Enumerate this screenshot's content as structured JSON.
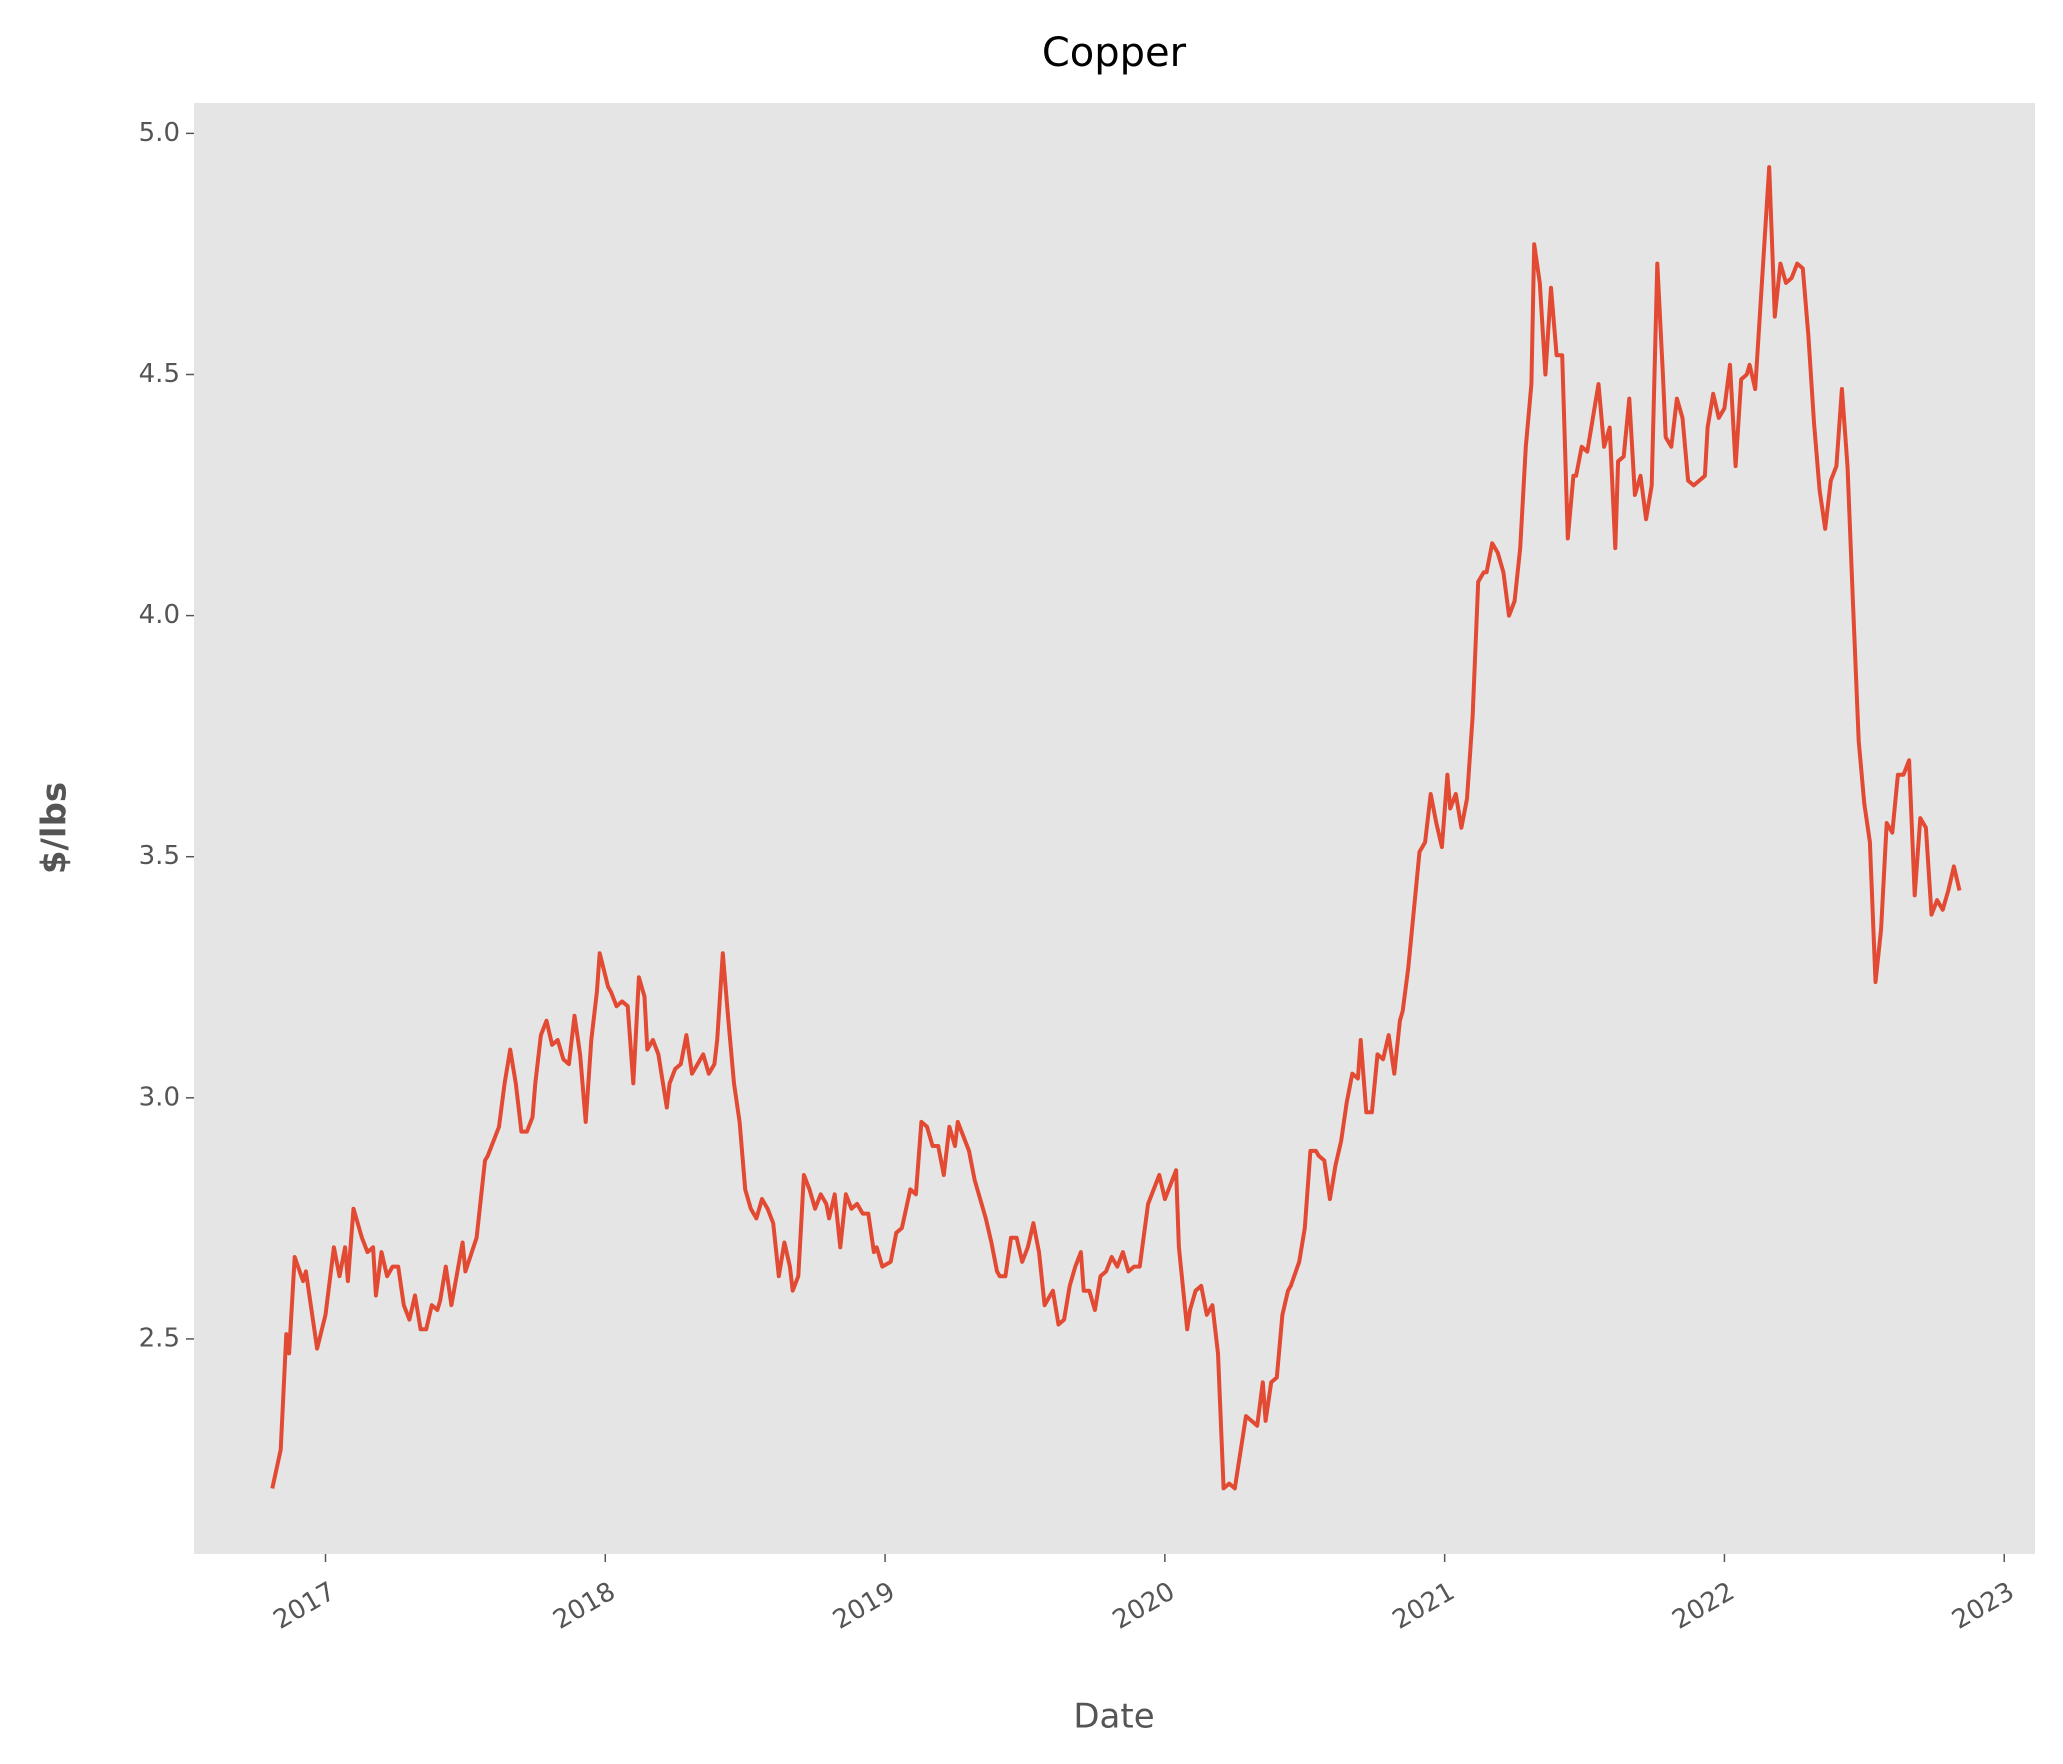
{
  "chart_data": {
    "type": "line",
    "title": "Copper",
    "xlabel": "Date",
    "ylabel": "$/lbs",
    "color": "#E24A33",
    "grid": false,
    "xlim": [
      2016.53,
      2023.11
    ],
    "xticks": [
      2017,
      2018,
      2019,
      2020,
      2021,
      2022,
      2023
    ],
    "ylim": [
      2.054,
      5.063
    ],
    "yticks": [
      2.5,
      {
        "value": 3,
        "label": "3.0"
      },
      3.5,
      {
        "value": 4,
        "label": "4.0"
      },
      4.5,
      {
        "value": 5,
        "label": "5.0"
      }
    ],
    "x": [
      2016.81,
      2016.84,
      2016.86,
      2016.87,
      2016.89,
      2016.92,
      2016.93,
      2016.97,
      2017.0,
      2017.03,
      2017.05,
      2017.07,
      2017.08,
      2017.1,
      2017.13,
      2017.15,
      2017.17,
      2017.18,
      2017.2,
      2017.22,
      2017.24,
      2017.26,
      2017.28,
      2017.3,
      2017.32,
      2017.34,
      2017.36,
      2017.38,
      2017.4,
      2017.41,
      2017.43,
      2017.45,
      2017.49,
      2017.5,
      2017.54,
      2017.57,
      2017.58,
      2017.62,
      2017.64,
      2017.66,
      2017.68,
      2017.7,
      2017.72,
      2017.74,
      2017.75,
      2017.77,
      2017.79,
      2017.81,
      2017.83,
      2017.85,
      2017.87,
      2017.89,
      2017.91,
      2017.93,
      2017.95,
      2017.97,
      2017.98,
      2018.01,
      2018.02,
      2018.04,
      2018.06,
      2018.08,
      2018.1,
      2018.12,
      2018.14,
      2018.15,
      2018.17,
      2018.19,
      2018.22,
      2018.23,
      2018.25,
      2018.27,
      2018.29,
      2018.31,
      2018.33,
      2018.35,
      2018.37,
      2018.39,
      2018.4,
      2018.42,
      2018.44,
      2018.46,
      2018.48,
      2018.5,
      2018.52,
      2018.54,
      2018.56,
      2018.58,
      2018.6,
      2018.62,
      2018.64,
      2018.66,
      2018.67,
      2018.69,
      2018.71,
      2018.73,
      2018.75,
      2018.77,
      2018.79,
      2018.8,
      2018.82,
      2018.84,
      2018.86,
      2018.88,
      2018.9,
      2018.92,
      2018.94,
      2018.96,
      2018.97,
      2018.99,
      2019.02,
      2019.04,
      2019.06,
      2019.09,
      2019.11,
      2019.13,
      2019.15,
      2019.17,
      2019.19,
      2019.21,
      2019.23,
      2019.25,
      2019.26,
      2019.28,
      2019.3,
      2019.32,
      2019.36,
      2019.38,
      2019.4,
      2019.41,
      2019.43,
      2019.45,
      2019.47,
      2019.49,
      2019.51,
      2019.53,
      2019.55,
      2019.57,
      2019.59,
      2019.6,
      2019.62,
      2019.64,
      2019.66,
      2019.68,
      2019.7,
      2019.71,
      2019.73,
      2019.75,
      2019.77,
      2019.79,
      2019.81,
      2019.83,
      2019.85,
      2019.87,
      2019.89,
      2019.91,
      2019.94,
      2019.96,
      2019.98,
      2020.0,
      2020.02,
      2020.04,
      2020.05,
      2020.08,
      2020.09,
      2020.11,
      2020.13,
      2020.15,
      2020.17,
      2020.19,
      2020.21,
      2020.23,
      2020.25,
      2020.29,
      2020.31,
      2020.33,
      2020.35,
      2020.36,
      2020.38,
      2020.4,
      2020.42,
      2020.44,
      2020.45,
      2020.48,
      2020.5,
      2020.52,
      2020.54,
      2020.55,
      2020.57,
      2020.59,
      2020.61,
      2020.63,
      2020.65,
      2020.67,
      2020.69,
      2020.7,
      2020.72,
      2020.74,
      2020.76,
      2020.78,
      2020.8,
      2020.82,
      2020.84,
      2020.85,
      2020.87,
      2020.89,
      2020.91,
      2020.93,
      2020.95,
      2020.97,
      2020.99,
      2021.01,
      2021.02,
      2021.04,
      2021.06,
      2021.08,
      2021.1,
      2021.12,
      2021.14,
      2021.15,
      2021.17,
      2021.19,
      2021.21,
      2021.23,
      2021.25,
      2021.27,
      2021.29,
      2021.31,
      2021.32,
      2021.34,
      2021.36,
      2021.38,
      2021.4,
      2021.42,
      2021.44,
      2021.46,
      2021.47,
      2021.49,
      2021.51,
      2021.55,
      2021.57,
      2021.59,
      2021.61,
      2021.62,
      2021.64,
      2021.66,
      2021.68,
      2021.7,
      2021.72,
      2021.74,
      2021.76,
      2021.78,
      2021.79,
      2021.81,
      2021.83,
      2021.85,
      2021.87,
      2021.89,
      2021.91,
      2021.93,
      2021.94,
      2021.96,
      2021.98,
      2022.0,
      2022.02,
      2022.04,
      2022.06,
      2022.08,
      2022.09,
      2022.11,
      2022.16,
      2022.18,
      2022.2,
      2022.22,
      2022.24,
      2022.26,
      2022.28,
      2022.3,
      2022.32,
      2022.34,
      2022.36,
      2022.38,
      2022.4,
      2022.42,
      2022.44,
      2022.46,
      2022.48,
      2022.5,
      2022.52,
      2022.54,
      2022.56,
      2022.58,
      2022.6,
      2022.62,
      2022.64,
      2022.66,
      2022.68,
      2022.7,
      2022.72,
      2022.74,
      2022.76,
      2022.78,
      2022.8,
      2022.82,
      2022.84
    ],
    "values": [
      2.19,
      2.27,
      2.51,
      2.47,
      2.67,
      2.62,
      2.64,
      2.48,
      2.55,
      2.69,
      2.63,
      2.69,
      2.62,
      2.77,
      2.71,
      2.68,
      2.69,
      2.59,
      2.68,
      2.63,
      2.65,
      2.65,
      2.57,
      2.54,
      2.59,
      2.52,
      2.52,
      2.57,
      2.56,
      2.58,
      2.65,
      2.57,
      2.7,
      2.64,
      2.71,
      2.87,
      2.88,
      2.94,
      3.03,
      3.1,
      3.03,
      2.93,
      2.93,
      2.96,
      3.03,
      3.13,
      3.16,
      3.11,
      3.12,
      3.08,
      3.07,
      3.17,
      3.09,
      2.95,
      3.12,
      3.22,
      3.3,
      3.23,
      3.22,
      3.19,
      3.2,
      3.19,
      3.03,
      3.25,
      3.21,
      3.1,
      3.12,
      3.09,
      2.98,
      3.03,
      3.06,
      3.07,
      3.13,
      3.05,
      3.07,
      3.09,
      3.05,
      3.07,
      3.12,
      3.3,
      3.16,
      3.03,
      2.95,
      2.81,
      2.77,
      2.75,
      2.79,
      2.77,
      2.74,
      2.63,
      2.7,
      2.65,
      2.6,
      2.63,
      2.84,
      2.81,
      2.77,
      2.8,
      2.78,
      2.75,
      2.8,
      2.69,
      2.8,
      2.77,
      2.78,
      2.76,
      2.76,
      2.68,
      2.69,
      2.65,
      2.66,
      2.72,
      2.73,
      2.81,
      2.8,
      2.95,
      2.94,
      2.9,
      2.9,
      2.84,
      2.94,
      2.9,
      2.95,
      2.92,
      2.89,
      2.83,
      2.75,
      2.7,
      2.64,
      2.63,
      2.63,
      2.71,
      2.71,
      2.66,
      2.69,
      2.74,
      2.68,
      2.57,
      2.59,
      2.6,
      2.53,
      2.54,
      2.61,
      2.65,
      2.68,
      2.6,
      2.6,
      2.56,
      2.63,
      2.64,
      2.67,
      2.65,
      2.68,
      2.64,
      2.65,
      2.65,
      2.78,
      2.81,
      2.84,
      2.79,
      2.82,
      2.85,
      2.69,
      2.52,
      2.56,
      2.6,
      2.61,
      2.55,
      2.57,
      2.47,
      2.19,
      2.2,
      2.19,
      2.34,
      2.33,
      2.32,
      2.41,
      2.33,
      2.41,
      2.42,
      2.55,
      2.6,
      2.61,
      2.66,
      2.73,
      2.89,
      2.89,
      2.88,
      2.87,
      2.79,
      2.86,
      2.91,
      2.99,
      3.05,
      3.04,
      3.12,
      2.97,
      2.97,
      3.09,
      3.08,
      3.13,
      3.05,
      3.16,
      3.18,
      3.27,
      3.39,
      3.51,
      3.53,
      3.63,
      3.57,
      3.52,
      3.67,
      3.6,
      3.63,
      3.56,
      3.62,
      3.79,
      4.07,
      4.09,
      4.09,
      4.15,
      4.13,
      4.09,
      4.0,
      4.03,
      4.14,
      4.35,
      4.48,
      4.77,
      4.69,
      4.5,
      4.68,
      4.54,
      4.54,
      4.16,
      4.29,
      4.29,
      4.35,
      4.34,
      4.48,
      4.35,
      4.39,
      4.14,
      4.32,
      4.33,
      4.45,
      4.25,
      4.29,
      4.2,
      4.27,
      4.73,
      4.5,
      4.37,
      4.35,
      4.45,
      4.41,
      4.28,
      4.27,
      4.28,
      4.29,
      4.39,
      4.46,
      4.41,
      4.43,
      4.52,
      4.31,
      4.49,
      4.5,
      4.52,
      4.47,
      4.93,
      4.62,
      4.73,
      4.69,
      4.7,
      4.73,
      4.72,
      4.58,
      4.4,
      4.26,
      4.18,
      4.28,
      4.31,
      4.47,
      4.31,
      4.02,
      3.74,
      3.61,
      3.53,
      3.24,
      3.35,
      3.57,
      3.55,
      3.67,
      3.67,
      3.7,
      3.42,
      3.58,
      3.56,
      3.38,
      3.41,
      3.39,
      3.43,
      3.48,
      3.43
    ]
  }
}
